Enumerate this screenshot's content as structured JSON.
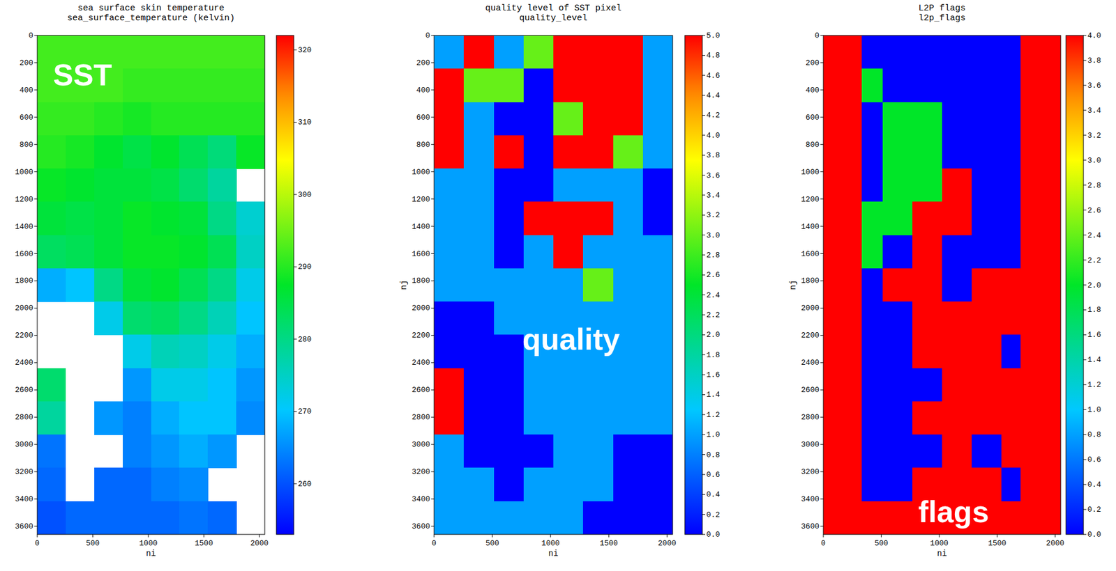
{
  "chart_data": [
    {
      "type": "heatmap",
      "title": "sea surface skin temperature",
      "subtitle": "sea_surface_temperature (kelvin)",
      "annotation": "SST",
      "xlabel": "ni",
      "xlim": [
        0,
        2048
      ],
      "ylim": [
        0,
        3660
      ],
      "xticks": [
        0,
        500,
        1000,
        1500,
        2000
      ],
      "yticks": [
        0,
        200,
        400,
        600,
        800,
        1000,
        1200,
        1400,
        1600,
        1800,
        2000,
        2200,
        2400,
        2600,
        2800,
        3000,
        3200,
        3400,
        3600
      ],
      "x_bins": [
        0,
        256,
        512,
        768,
        1024,
        1280,
        1536,
        1792,
        2048
      ],
      "y_bins": [
        0,
        244,
        488,
        732,
        976,
        1220,
        1464,
        1708,
        1952,
        2196,
        2440,
        2684,
        2928,
        3172,
        3416,
        3660
      ],
      "cells": [
        [
          292,
          292,
          292,
          292,
          292,
          292,
          292,
          292
        ],
        [
          292,
          292,
          292,
          291,
          291,
          291,
          291,
          291
        ],
        [
          291,
          291,
          290,
          289,
          290,
          290,
          290,
          290
        ],
        [
          290,
          289,
          287,
          285,
          287,
          284,
          281,
          288
        ],
        [
          288,
          287,
          286,
          286,
          285,
          282,
          278,
          null
        ],
        [
          286,
          285,
          286,
          288,
          287,
          286,
          280,
          274
        ],
        [
          283,
          284,
          286,
          288,
          288,
          287,
          284,
          275
        ],
        [
          268,
          270,
          280,
          286,
          287,
          284,
          280,
          272
        ],
        [
          null,
          null,
          272,
          282,
          283,
          280,
          276,
          270
        ],
        [
          null,
          null,
          null,
          272,
          276,
          275,
          272,
          268
        ],
        [
          282,
          null,
          null,
          266,
          272,
          272,
          270,
          266
        ],
        [
          278,
          null,
          266,
          264,
          268,
          270,
          270,
          265
        ],
        [
          263,
          null,
          null,
          264,
          266,
          268,
          266,
          null
        ],
        [
          262,
          null,
          262,
          262,
          264,
          265,
          null,
          null
        ],
        [
          260,
          262,
          262,
          262,
          262,
          263,
          262,
          null
        ]
      ],
      "colorbar": {
        "lim": [
          253,
          322
        ],
        "ticks": [
          260,
          270,
          280,
          290,
          300,
          310,
          320
        ]
      }
    },
    {
      "type": "heatmap",
      "title": "quality level of SST pixel",
      "subtitle": "quality_level",
      "annotation": "quality",
      "xlabel": "ni",
      "ylabel": "nj",
      "xlim": [
        0,
        2048
      ],
      "ylim": [
        0,
        3660
      ],
      "xticks": [
        0,
        500,
        1000,
        1500,
        2000
      ],
      "yticks": [
        0,
        200,
        400,
        600,
        800,
        1000,
        1200,
        1400,
        1600,
        1800,
        2000,
        2200,
        2400,
        2600,
        2800,
        3000,
        3200,
        3400,
        3600
      ],
      "x_bins": [
        0,
        256,
        512,
        768,
        1024,
        1280,
        1536,
        1792,
        2048
      ],
      "y_bins": [
        0,
        244,
        488,
        732,
        976,
        1220,
        1464,
        1708,
        1952,
        2196,
        2440,
        2684,
        2928,
        3172,
        3416,
        3660
      ],
      "cells": [
        [
          1,
          5,
          1,
          3,
          5,
          5,
          5,
          1
        ],
        [
          5,
          3,
          3,
          0,
          5,
          5,
          5,
          1
        ],
        [
          5,
          1,
          0,
          0,
          3,
          5,
          5,
          1
        ],
        [
          5,
          1,
          5,
          0,
          5,
          5,
          3,
          1
        ],
        [
          1,
          1,
          0,
          0,
          1,
          1,
          1,
          0
        ],
        [
          1,
          1,
          0,
          5,
          5,
          5,
          1,
          0
        ],
        [
          1,
          1,
          0,
          1,
          5,
          1,
          1,
          1
        ],
        [
          1,
          1,
          1,
          1,
          1,
          3,
          1,
          1
        ],
        [
          0,
          0,
          1,
          1,
          1,
          1,
          1,
          1
        ],
        [
          0,
          0,
          0,
          1,
          1,
          1,
          1,
          1
        ],
        [
          5,
          0,
          0,
          1,
          1,
          1,
          1,
          1
        ],
        [
          5,
          0,
          0,
          1,
          1,
          1,
          1,
          1
        ],
        [
          1,
          0,
          0,
          0,
          1,
          1,
          0,
          0
        ],
        [
          1,
          1,
          0,
          1,
          1,
          1,
          0,
          0
        ],
        [
          1,
          1,
          1,
          1,
          1,
          0,
          0,
          0
        ]
      ],
      "colorbar": {
        "lim": [
          0,
          5
        ],
        "ticks": [
          {
            "value": 0,
            "label": "0.0"
          },
          0.2,
          0.4,
          0.6,
          0.8,
          {
            "value": 1,
            "label": "1.0"
          },
          1.2,
          1.4,
          1.6,
          1.8,
          {
            "value": 2,
            "label": "2.0"
          },
          2.2,
          2.4,
          2.6,
          2.8,
          {
            "value": 3,
            "label": "3.0"
          },
          3.2,
          3.4,
          3.6,
          3.8,
          {
            "value": 4,
            "label": "4.0"
          },
          4.2,
          4.4,
          4.6,
          4.8,
          {
            "value": 5,
            "label": "5.0"
          }
        ]
      }
    },
    {
      "type": "heatmap",
      "title": "L2P flags",
      "subtitle": "l2p_flags",
      "annotation": "flags",
      "xlabel": "ni",
      "ylabel": "nj",
      "xlim": [
        0,
        2048
      ],
      "ylim": [
        0,
        3660
      ],
      "xticks": [
        0,
        500,
        1000,
        1500,
        2000
      ],
      "yticks": [
        0,
        200,
        400,
        600,
        800,
        1000,
        1200,
        1400,
        1600,
        1800,
        2000,
        2200,
        2400,
        2600,
        2800,
        3000,
        3200,
        3400,
        3600
      ],
      "x_bins": [
        0,
        330,
        512,
        768,
        1024,
        1280,
        1536,
        1700,
        2048
      ],
      "y_bins": [
        0,
        244,
        488,
        732,
        976,
        1220,
        1464,
        1708,
        1952,
        2196,
        2440,
        2684,
        2928,
        3172,
        3416,
        3660
      ],
      "cells": [
        [
          4,
          0,
          0,
          0,
          0,
          0,
          0,
          4
        ],
        [
          4,
          2,
          0,
          0,
          0,
          0,
          0,
          4
        ],
        [
          4,
          0,
          2,
          2,
          0,
          0,
          0,
          4
        ],
        [
          4,
          0,
          2,
          2,
          0,
          0,
          0,
          4
        ],
        [
          4,
          0,
          2,
          2,
          4,
          0,
          0,
          4
        ],
        [
          4,
          2,
          2,
          4,
          4,
          0,
          0,
          4
        ],
        [
          4,
          2,
          0,
          4,
          0,
          0,
          0,
          4
        ],
        [
          4,
          0,
          4,
          4,
          0,
          4,
          4,
          4
        ],
        [
          4,
          0,
          0,
          4,
          4,
          4,
          4,
          4
        ],
        [
          4,
          0,
          0,
          4,
          4,
          4,
          0,
          4
        ],
        [
          4,
          0,
          0,
          0,
          4,
          4,
          4,
          4
        ],
        [
          4,
          0,
          0,
          4,
          4,
          4,
          4,
          4
        ],
        [
          4,
          0,
          0,
          0,
          4,
          0,
          4,
          4
        ],
        [
          4,
          0,
          0,
          4,
          4,
          4,
          0,
          4
        ],
        [
          4,
          4,
          4,
          4,
          4,
          4,
          4,
          4
        ]
      ],
      "colorbar": {
        "lim": [
          0,
          4
        ],
        "ticks": [
          {
            "value": 0,
            "label": "0.0"
          },
          0.2,
          0.4,
          0.6,
          0.8,
          {
            "value": 1,
            "label": "1.0"
          },
          1.2,
          1.4,
          1.6,
          1.8,
          {
            "value": 2,
            "label": "2.0"
          },
          2.2,
          2.4,
          2.6,
          2.8,
          {
            "value": 3,
            "label": "3.0"
          },
          3.2,
          3.4,
          3.6,
          3.8,
          {
            "value": 4,
            "label": "4.0"
          }
        ]
      }
    }
  ]
}
